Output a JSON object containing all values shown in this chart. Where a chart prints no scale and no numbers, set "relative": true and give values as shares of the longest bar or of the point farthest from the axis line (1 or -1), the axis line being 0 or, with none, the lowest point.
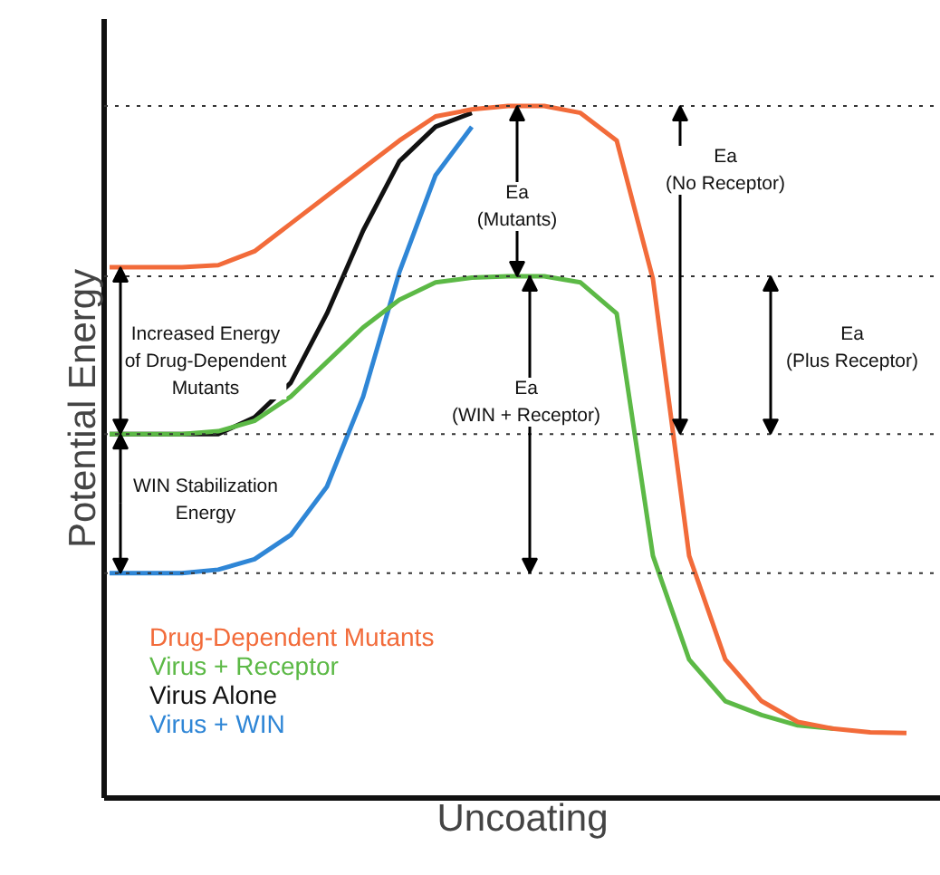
{
  "chart_data": {
    "type": "line",
    "relative": true,
    "xlabel": "Uncoating",
    "ylabel": "Potential Energy",
    "categories": [
      null,
      null,
      null,
      null,
      null,
      null,
      null,
      null,
      null,
      null,
      null,
      null,
      null,
      null,
      null,
      null,
      null,
      null,
      null,
      null,
      null,
      null,
      null
    ],
    "series": [
      {
        "name": "Drug-Dependent Mutants",
        "color": "#f26b3a",
        "values": [
          0.767,
          0.767,
          0.767,
          0.77,
          0.79,
          0.83,
          0.87,
          0.91,
          0.95,
          0.985,
          0.995,
          1,
          1,
          0.99,
          0.95,
          0.75,
          0.35,
          0.2,
          0.14,
          0.11,
          0.1,
          0.095,
          0.094
        ]
      },
      {
        "name": "Virus + Receptor",
        "color": "#5cb946",
        "values": [
          0.526,
          0.526,
          0.526,
          0.53,
          0.545,
          0.58,
          0.63,
          0.68,
          0.72,
          0.745,
          0.752,
          0.754,
          0.754,
          0.745,
          0.7,
          0.35,
          0.2,
          0.14,
          0.12,
          0.105,
          0.1,
          null,
          null
        ]
      },
      {
        "name": "Virus Alone",
        "color": "#111111",
        "values": [
          0.526,
          0.526,
          0.526,
          0.526,
          0.55,
          0.6,
          0.7,
          0.82,
          0.92,
          0.97,
          0.99,
          null,
          null,
          null,
          null,
          null,
          null,
          null,
          null,
          null,
          null,
          null,
          null
        ]
      },
      {
        "name": "Virus + WIN",
        "color": "#2f86d6",
        "values": [
          0.325,
          0.325,
          0.325,
          0.33,
          0.345,
          0.38,
          0.45,
          0.58,
          0.76,
          0.9,
          0.97,
          null,
          null,
          null,
          null,
          null,
          null,
          null,
          null,
          null,
          null,
          null,
          null
        ]
      }
    ],
    "ref_lines": [
      {
        "axis": "y",
        "value": 1,
        "line_style": "dotted"
      },
      {
        "axis": "y",
        "value": 0.754,
        "line_style": "dotted"
      },
      {
        "axis": "y",
        "value": 0.526,
        "line_style": "dotted"
      },
      {
        "axis": "y",
        "value": 0.325,
        "line_style": "dotted"
      }
    ],
    "annotations": [
      "Ea\n(Mutants)",
      "Ea\n(No Receptor)",
      "Ea\n(Plus Receptor)",
      "Increased Energy\nof Drug-Dependent\nMutants",
      "Ea\n(WIN + Receptor)",
      "WIN Stabilization\nEnergy"
    ],
    "legend": "bottom left",
    "marker": "none",
    "line_style": "solid"
  }
}
